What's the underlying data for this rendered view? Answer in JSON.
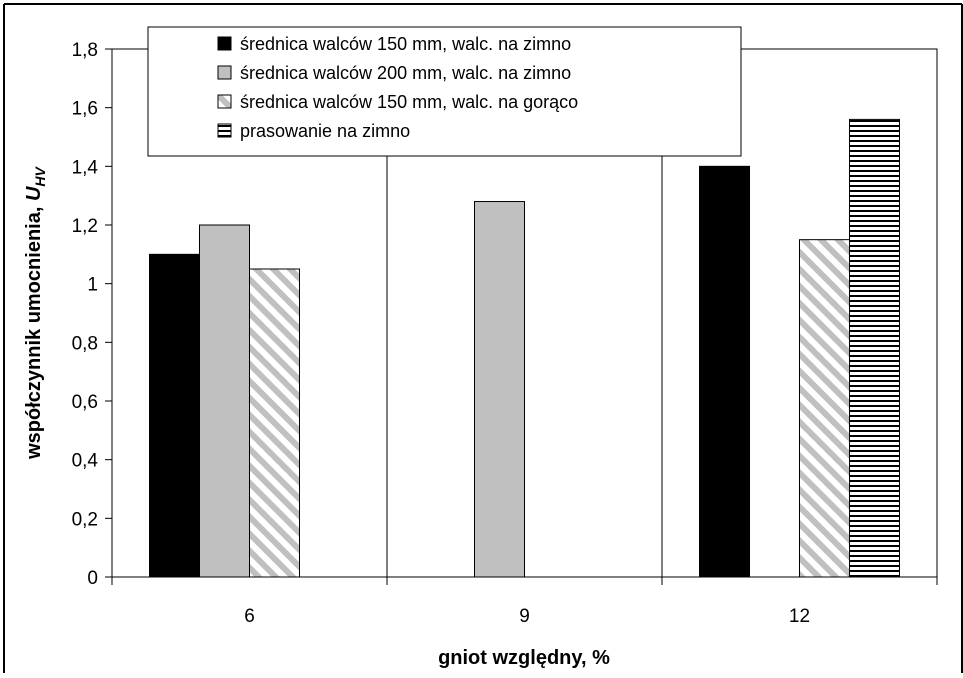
{
  "chart_data": {
    "type": "bar",
    "categories": [
      "6",
      "9",
      "12"
    ],
    "series": [
      {
        "name": "średnica walców 150 mm, walc. na zimno",
        "values": [
          1.1,
          null,
          1.4
        ],
        "color": "#000000",
        "pattern": "solid"
      },
      {
        "name": "średnica walców 200 mm, walc. na zimno",
        "values": [
          1.2,
          1.28,
          null
        ],
        "color": "#c0c0c0",
        "pattern": "solid"
      },
      {
        "name": "średnica walców 150 mm, walc. na gorąco",
        "values": [
          1.05,
          null,
          1.15
        ],
        "color": "#c0c0c0",
        "pattern": "diagonal-stripes"
      },
      {
        "name": "prasowanie na zimno",
        "values": [
          null,
          null,
          1.56
        ],
        "color": "#000000",
        "pattern": "horizontal-stripes"
      }
    ],
    "xlabel": "gniot względny, %",
    "ylabel_main": "współczynnik umocnienia, ",
    "ylabel_symbol": "U",
    "ylabel_subscript": "HV",
    "ylim": [
      0,
      1.8
    ],
    "yticks": [
      "0",
      "0,2",
      "0,4",
      "0,6",
      "0,8",
      "1",
      "1,2",
      "1,4",
      "1,6",
      "1,8"
    ],
    "grid": "vertical",
    "legend_position": "top-left"
  }
}
